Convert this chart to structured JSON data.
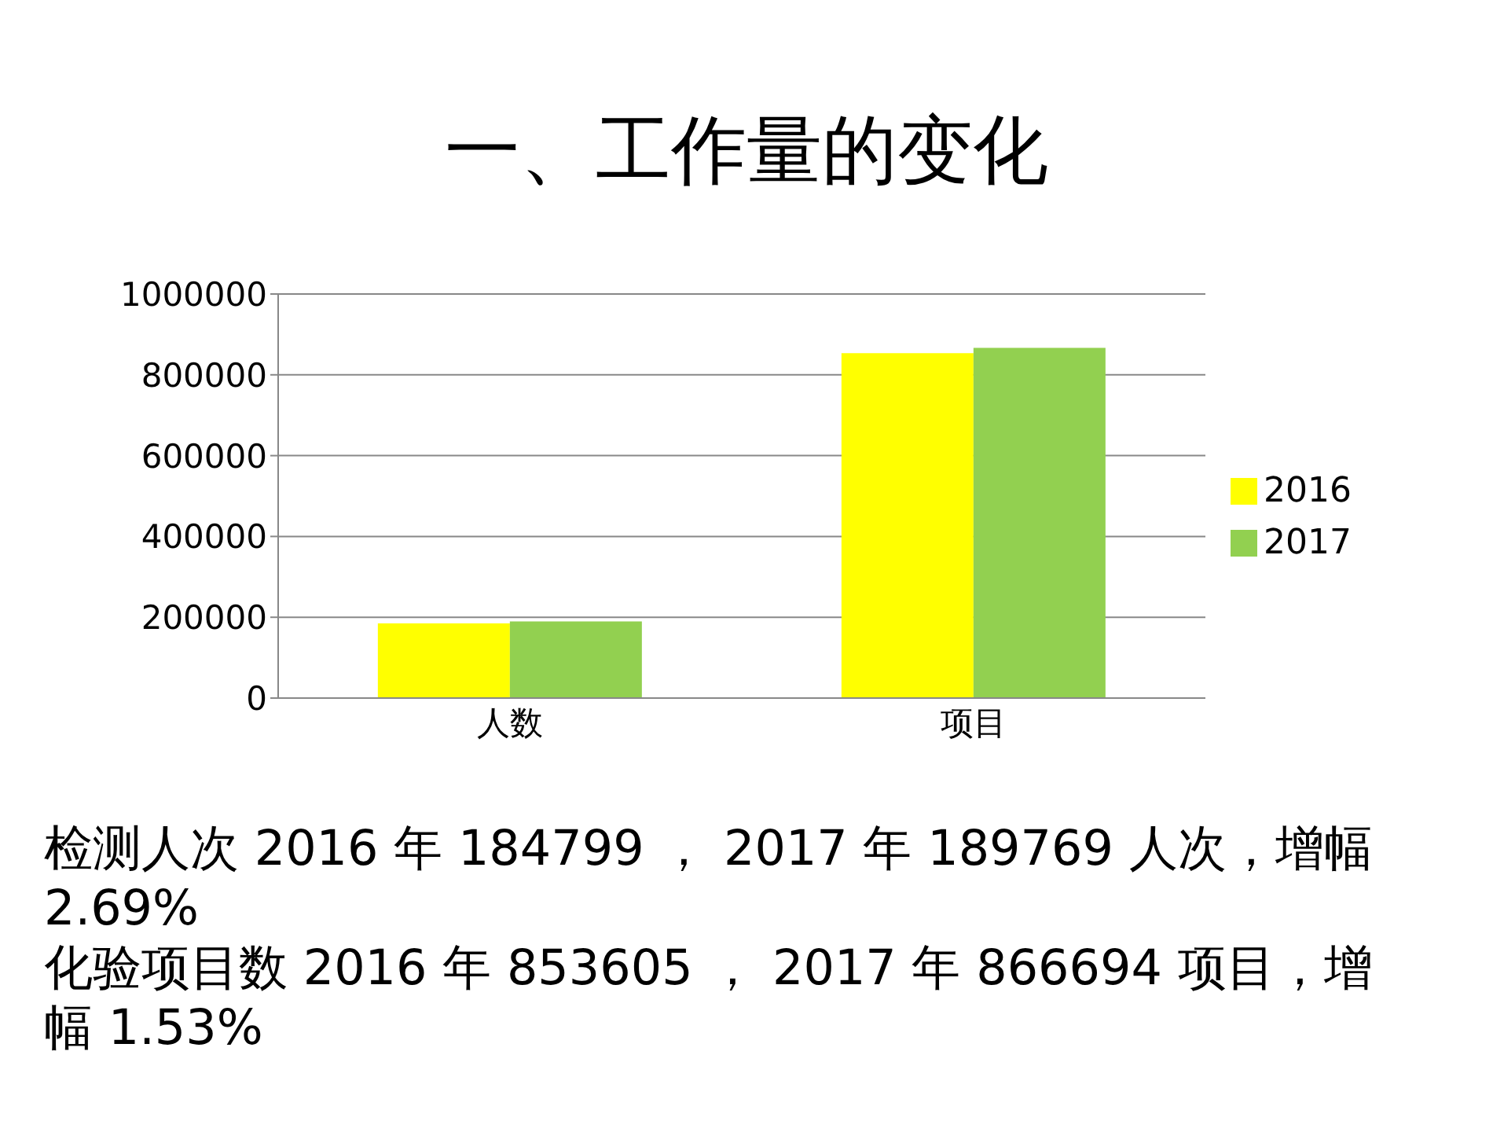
{
  "chart_data": {
    "type": "bar",
    "title": "一、工作量的变化",
    "categories": [
      "人数",
      "项目"
    ],
    "series": [
      {
        "name": "2016",
        "color": "#ffff00",
        "values": [
          184799,
          853605
        ]
      },
      {
        "name": "2017",
        "color": "#92d050",
        "values": [
          189769,
          866694
        ]
      }
    ],
    "ylim": [
      0,
      1000000
    ],
    "yticks": [
      0,
      200000,
      400000,
      600000,
      800000,
      1000000
    ],
    "grid": "y",
    "legend": "right",
    "annotations": [
      "检测人次 2016 年 184799 ， 2017 年 189769 人次，增幅 2.69%",
      "化验项目数 2016 年 853605 ， 2017 年 866694 项目，增幅 1.53%"
    ]
  }
}
